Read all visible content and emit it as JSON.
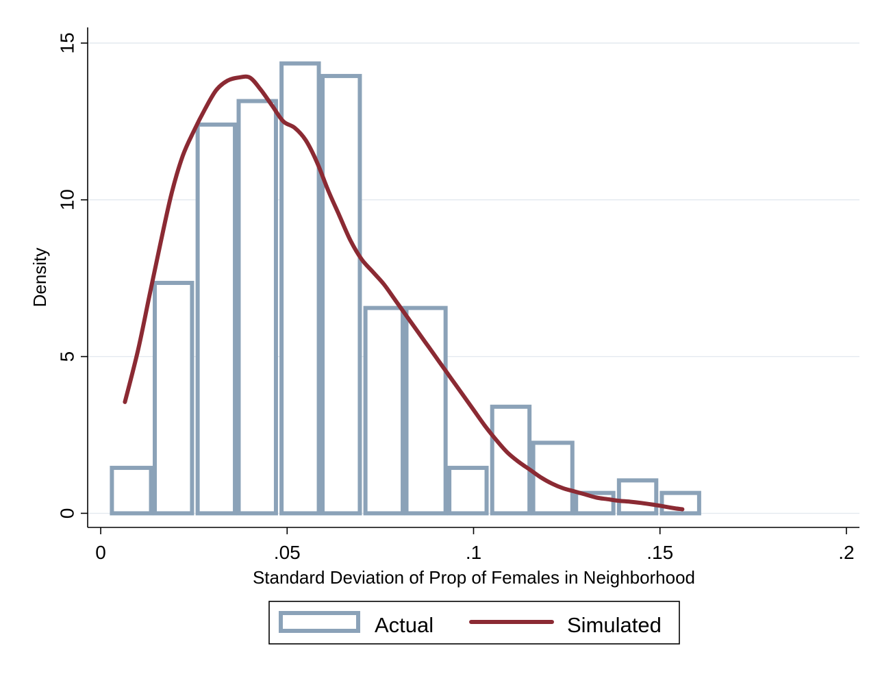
{
  "chart_data": {
    "type": "bar",
    "xlabel": "Standard Deviation of Prop of Females in Neighborhood",
    "ylabel": "Density",
    "xlim": [
      -0.0035,
      0.2035
    ],
    "ylim": [
      -0.45,
      15.5
    ],
    "x_ticks": [
      {
        "value": 0,
        "label": "0"
      },
      {
        "value": 0.05,
        "label": ".05"
      },
      {
        "value": 0.1,
        "label": ".1"
      },
      {
        "value": 0.15,
        "label": ".15"
      },
      {
        "value": 0.2,
        "label": ".2"
      }
    ],
    "y_ticks": [
      {
        "value": 0,
        "label": "0"
      },
      {
        "value": 5,
        "label": "5"
      },
      {
        "value": 10,
        "label": "10"
      },
      {
        "value": 15,
        "label": "15"
      }
    ],
    "grid": "horizontal",
    "legend_position": "bottom",
    "series": [
      {
        "name": "Actual",
        "kind": "histogram",
        "color": "#8ba2b8",
        "bins": [
          {
            "x0": 0.003,
            "x1": 0.0135,
            "value": 1.45
          },
          {
            "x0": 0.0145,
            "x1": 0.0245,
            "value": 7.35
          },
          {
            "x0": 0.026,
            "x1": 0.036,
            "value": 12.4
          },
          {
            "x0": 0.037,
            "x1": 0.047,
            "value": 13.15
          },
          {
            "x0": 0.0485,
            "x1": 0.0585,
            "value": 14.35
          },
          {
            "x0": 0.0595,
            "x1": 0.0695,
            "value": 13.95
          },
          {
            "x0": 0.071,
            "x1": 0.081,
            "value": 6.55
          },
          {
            "x0": 0.082,
            "x1": 0.0925,
            "value": 6.55
          },
          {
            "x0": 0.0935,
            "x1": 0.1035,
            "value": 1.45
          },
          {
            "x0": 0.105,
            "x1": 0.115,
            "value": 3.4
          },
          {
            "x0": 0.116,
            "x1": 0.1265,
            "value": 2.25
          },
          {
            "x0": 0.1275,
            "x1": 0.1375,
            "value": 0.65
          },
          {
            "x0": 0.139,
            "x1": 0.149,
            "value": 1.05
          },
          {
            "x0": 0.1505,
            "x1": 0.1605,
            "value": 0.65
          }
        ]
      },
      {
        "name": "Simulated",
        "kind": "line",
        "color": "#8b2a33",
        "x": [
          0.0065,
          0.01,
          0.013,
          0.016,
          0.019,
          0.022,
          0.025,
          0.028,
          0.031,
          0.034,
          0.037,
          0.04,
          0.043,
          0.046,
          0.049,
          0.052,
          0.055,
          0.058,
          0.061,
          0.064,
          0.067,
          0.07,
          0.073,
          0.076,
          0.079,
          0.082,
          0.085,
          0.088,
          0.091,
          0.094,
          0.097,
          0.1,
          0.103,
          0.106,
          0.109,
          0.112,
          0.115,
          0.118,
          0.121,
          0.124,
          0.127,
          0.13,
          0.133,
          0.136,
          0.139,
          0.142,
          0.145,
          0.148,
          0.151,
          0.154,
          0.156
        ],
        "y": [
          3.55,
          5.2,
          6.9,
          8.6,
          10.2,
          11.4,
          12.2,
          12.9,
          13.5,
          13.8,
          13.9,
          13.9,
          13.5,
          13.0,
          12.5,
          12.3,
          11.9,
          11.2,
          10.3,
          9.5,
          8.7,
          8.1,
          7.7,
          7.3,
          6.8,
          6.3,
          5.8,
          5.3,
          4.8,
          4.3,
          3.8,
          3.3,
          2.8,
          2.35,
          1.95,
          1.65,
          1.4,
          1.15,
          0.95,
          0.8,
          0.7,
          0.6,
          0.5,
          0.45,
          0.4,
          0.37,
          0.33,
          0.28,
          0.22,
          0.16,
          0.13
        ]
      }
    ]
  }
}
